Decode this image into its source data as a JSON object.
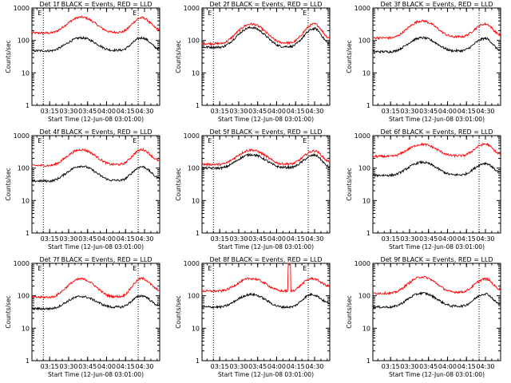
{
  "figure": {
    "time_range": [
      "03:01:00",
      "04:42:00"
    ]
  },
  "chart_data": [
    {
      "type": "line",
      "title": "Det 1f BLACK = Events, RED = LLD",
      "detector": "1f",
      "has_e_markers": true,
      "xlabel": "Start Time (12-Jun-08 03:01:00)",
      "ylabel": "Counts/sec",
      "yscale": "log",
      "ylim": [
        1,
        1000
      ],
      "y_tick_labels": [
        "1000",
        "100",
        "10",
        "1"
      ],
      "x_tick_labels": [
        "03:15",
        "03:30",
        "03:45",
        "04:00",
        "04:15",
        "04:30"
      ],
      "dotted_lines_at": [
        "03:10",
        "04:25"
      ],
      "e_marker_label": "E",
      "series": [
        {
          "name": "LLD",
          "color": "#ff0000",
          "shape": {
            "base": 170,
            "peak1": 520,
            "t_peak1": "03:40",
            "min": 180,
            "t_min": "04:05",
            "peak2": 500,
            "t_peak2": "04:28",
            "end": 220
          }
        },
        {
          "name": "Events",
          "color": "#000000",
          "shape": {
            "base": 48,
            "peak1": 120,
            "t_peak1": "03:40",
            "min": 50,
            "t_min": "04:05",
            "peak2": 120,
            "t_peak2": "04:28",
            "end": 55
          }
        }
      ]
    },
    {
      "type": "line",
      "title": "Det 2f BLACK = Events, RED = LLD",
      "detector": "2f",
      "has_e_markers": true,
      "xlabel": "Start Time (12-Jun-08 03:01:00)",
      "ylabel": "Counts/sec",
      "yscale": "log",
      "ylim": [
        1,
        1000
      ],
      "y_tick_labels": [
        "1000",
        "100",
        "10",
        "1"
      ],
      "x_tick_labels": [
        "03:15",
        "03:30",
        "03:45",
        "04:00",
        "04:15",
        "04:30"
      ],
      "dotted_lines_at": [
        "03:10",
        "04:25"
      ],
      "e_marker_label": "E",
      "series": [
        {
          "name": "LLD",
          "color": "#ff0000",
          "shape": {
            "base": 80,
            "peak1": 320,
            "t_peak1": "03:40",
            "min": 85,
            "t_min": "04:05",
            "peak2": 320,
            "t_peak2": "04:30",
            "end": 120
          }
        },
        {
          "name": "Events",
          "color": "#000000",
          "shape": {
            "base": 62,
            "peak1": 250,
            "t_peak1": "03:40",
            "min": 65,
            "t_min": "04:05",
            "peak2": 230,
            "t_peak2": "04:30",
            "end": 80
          }
        }
      ]
    },
    {
      "type": "line",
      "title": "Det 3f BLACK = Events, RED = LLD",
      "detector": "3f",
      "has_e_markers": false,
      "xlabel": "Start Time (12-Jun-08 03:01:00)",
      "ylabel": "Counts/sec",
      "yscale": "log",
      "ylim": [
        1,
        1000
      ],
      "y_tick_labels": [
        "1000",
        "100",
        "10",
        "1"
      ],
      "x_tick_labels": [
        "03:15",
        "03:30",
        "03:45",
        "04:00",
        "04:15",
        "04:30"
      ],
      "dotted_lines_at": [
        "04:25"
      ],
      "e_marker_label": "",
      "series": [
        {
          "name": "LLD",
          "color": "#ff0000",
          "shape": {
            "base": 120,
            "peak1": 400,
            "t_peak1": "03:40",
            "min": 130,
            "t_min": "04:05",
            "peak2": 320,
            "t_peak2": "04:30",
            "end": 150
          }
        },
        {
          "name": "Events",
          "color": "#000000",
          "shape": {
            "base": 45,
            "peak1": 120,
            "t_peak1": "03:40",
            "min": 48,
            "t_min": "04:05",
            "peak2": 115,
            "t_peak2": "04:30",
            "end": 50
          }
        }
      ]
    },
    {
      "type": "line",
      "title": "Det 4f BLACK = Events, RED = LLD",
      "detector": "4f",
      "has_e_markers": true,
      "xlabel": "Start Time (12-Jun-08 03:01:00)",
      "ylabel": "Counts/sec",
      "yscale": "log",
      "ylim": [
        1,
        1000
      ],
      "y_tick_labels": [
        "1000",
        "100",
        "10",
        "1"
      ],
      "x_tick_labels": [
        "03:15",
        "03:30",
        "03:45",
        "04:00",
        "04:15",
        "04:30"
      ],
      "dotted_lines_at": [
        "03:10",
        "04:25"
      ],
      "e_marker_label": "E",
      "series": [
        {
          "name": "LLD",
          "color": "#ff0000",
          "shape": {
            "base": 120,
            "peak1": 370,
            "t_peak1": "03:40",
            "min": 130,
            "t_min": "04:05",
            "peak2": 370,
            "t_peak2": "04:28",
            "end": 170
          }
        },
        {
          "name": "Events",
          "color": "#000000",
          "shape": {
            "base": 40,
            "peak1": 115,
            "t_peak1": "03:40",
            "min": 42,
            "t_min": "04:05",
            "peak2": 110,
            "t_peak2": "04:28",
            "end": 50
          }
        }
      ]
    },
    {
      "type": "line",
      "title": "Det 5f BLACK = Events, RED = LLD",
      "detector": "5f",
      "has_e_markers": true,
      "xlabel": "Start Time (12-Jun-08 03:01:00)",
      "ylabel": "Counts/sec",
      "yscale": "log",
      "ylim": [
        1,
        1000
      ],
      "y_tick_labels": [
        "1000",
        "100",
        "10",
        "1"
      ],
      "x_tick_labels": [
        "03:15",
        "03:30",
        "03:45",
        "04:00",
        "04:15",
        "04:30"
      ],
      "dotted_lines_at": [
        "03:10",
        "04:25"
      ],
      "e_marker_label": "E",
      "series": [
        {
          "name": "LLD",
          "color": "#ff0000",
          "shape": {
            "base": 130,
            "peak1": 360,
            "t_peak1": "03:40",
            "min": 135,
            "t_min": "04:05",
            "peak2": 340,
            "t_peak2": "04:30",
            "end": 160
          }
        },
        {
          "name": "Events",
          "color": "#000000",
          "shape": {
            "base": 100,
            "peak1": 260,
            "t_peak1": "03:40",
            "min": 105,
            "t_min": "04:05",
            "peak2": 250,
            "t_peak2": "04:30",
            "end": 110
          }
        }
      ]
    },
    {
      "type": "line",
      "title": "Det 6f BLACK = Events, RED = LLD",
      "detector": "6f",
      "has_e_markers": false,
      "xlabel": "Start Time (12-Jun-08 03:01:00)",
      "ylabel": "Counts/sec",
      "yscale": "log",
      "ylim": [
        1,
        1000
      ],
      "y_tick_labels": [
        "1000",
        "100",
        "10",
        "1"
      ],
      "x_tick_labels": [
        "03:15",
        "03:30",
        "03:45",
        "04:00",
        "04:15",
        "04:30"
      ],
      "dotted_lines_at": [
        "04:25"
      ],
      "e_marker_label": "",
      "series": [
        {
          "name": "LLD",
          "color": "#ff0000",
          "shape": {
            "base": 230,
            "peak1": 540,
            "t_peak1": "03:40",
            "min": 240,
            "t_min": "04:05",
            "peak2": 550,
            "t_peak2": "04:30",
            "end": 270
          }
        },
        {
          "name": "Events",
          "color": "#000000",
          "shape": {
            "base": 60,
            "peak1": 150,
            "t_peak1": "03:40",
            "min": 62,
            "t_min": "04:05",
            "peak2": 140,
            "t_peak2": "04:30",
            "end": 75
          }
        }
      ]
    },
    {
      "type": "line",
      "title": "Det 7f BLACK = Events, RED = LLD",
      "detector": "7f",
      "has_e_markers": true,
      "xlabel": "Start Time (12-Jun-08 03:01:00)",
      "ylabel": "Counts/sec",
      "yscale": "log",
      "ylim": [
        1,
        1000
      ],
      "y_tick_labels": [
        "1000",
        "100",
        "10",
        "1"
      ],
      "x_tick_labels": [
        "03:15",
        "03:30",
        "03:45",
        "04:00",
        "04:15",
        "04:30"
      ],
      "dotted_lines_at": [
        "03:10",
        "04:25"
      ],
      "e_marker_label": "E",
      "series": [
        {
          "name": "LLD",
          "color": "#ff0000",
          "shape": {
            "base": 90,
            "peak1": 330,
            "t_peak1": "03:40",
            "min": 95,
            "t_min": "04:05",
            "peak2": 340,
            "t_peak2": "04:28",
            "end": 150
          }
        },
        {
          "name": "Events",
          "color": "#000000",
          "shape": {
            "base": 40,
            "peak1": 95,
            "t_peak1": "03:40",
            "min": 45,
            "t_min": "04:05",
            "peak2": 100,
            "t_peak2": "04:28",
            "end": 50
          }
        }
      ]
    },
    {
      "type": "line",
      "title": "Det 8f BLACK = Events, RED = LLD",
      "detector": "8f",
      "has_e_markers": true,
      "xlabel": "Start Time (12-Jun-08 03:01:00)",
      "ylabel": "Counts/sec",
      "yscale": "log",
      "ylim": [
        1,
        1000
      ],
      "y_tick_labels": [
        "1000",
        "100",
        "10",
        "1"
      ],
      "x_tick_labels": [
        "03:15",
        "03:30",
        "03:45",
        "04:00",
        "04:15",
        "04:30"
      ],
      "dotted_lines_at": [
        "03:10",
        "04:25"
      ],
      "e_marker_label": "E",
      "spike": {
        "series": "LLD",
        "t_start": "04:09",
        "t_end": "04:11",
        "value": 1000
      },
      "series": [
        {
          "name": "LLD",
          "color": "#ff0000",
          "shape": {
            "base": 140,
            "peak1": 340,
            "t_peak1": "03:40",
            "min": 140,
            "t_min": "04:05",
            "peak2": 340,
            "t_peak2": "04:28",
            "end": 200
          }
        },
        {
          "name": "Events",
          "color": "#000000",
          "shape": {
            "base": 45,
            "peak1": 110,
            "t_peak1": "03:40",
            "min": 45,
            "t_min": "04:05",
            "peak2": 110,
            "t_peak2": "04:28",
            "end": 60
          }
        }
      ]
    },
    {
      "type": "line",
      "title": "Det 9f BLACK = Events, RED = LLD",
      "detector": "9f",
      "has_e_markers": false,
      "xlabel": "Start Time (12-Jun-08 03:01:00)",
      "ylabel": "Counts/sec",
      "yscale": "log",
      "ylim": [
        1,
        1000
      ],
      "y_tick_labels": [
        "1000",
        "100",
        "10",
        "1"
      ],
      "x_tick_labels": [
        "03:15",
        "03:30",
        "03:45",
        "04:00",
        "04:15",
        "04:30"
      ],
      "dotted_lines_at": [
        "04:25"
      ],
      "e_marker_label": "",
      "series": [
        {
          "name": "LLD",
          "color": "#ff0000",
          "shape": {
            "base": 120,
            "peak1": 380,
            "t_peak1": "03:40",
            "min": 130,
            "t_min": "04:05",
            "peak2": 330,
            "t_peak2": "04:30",
            "end": 160
          }
        },
        {
          "name": "Events",
          "color": "#000000",
          "shape": {
            "base": 45,
            "peak1": 120,
            "t_peak1": "03:40",
            "min": 48,
            "t_min": "04:05",
            "peak2": 115,
            "t_peak2": "04:30",
            "end": 55
          }
        }
      ]
    }
  ]
}
